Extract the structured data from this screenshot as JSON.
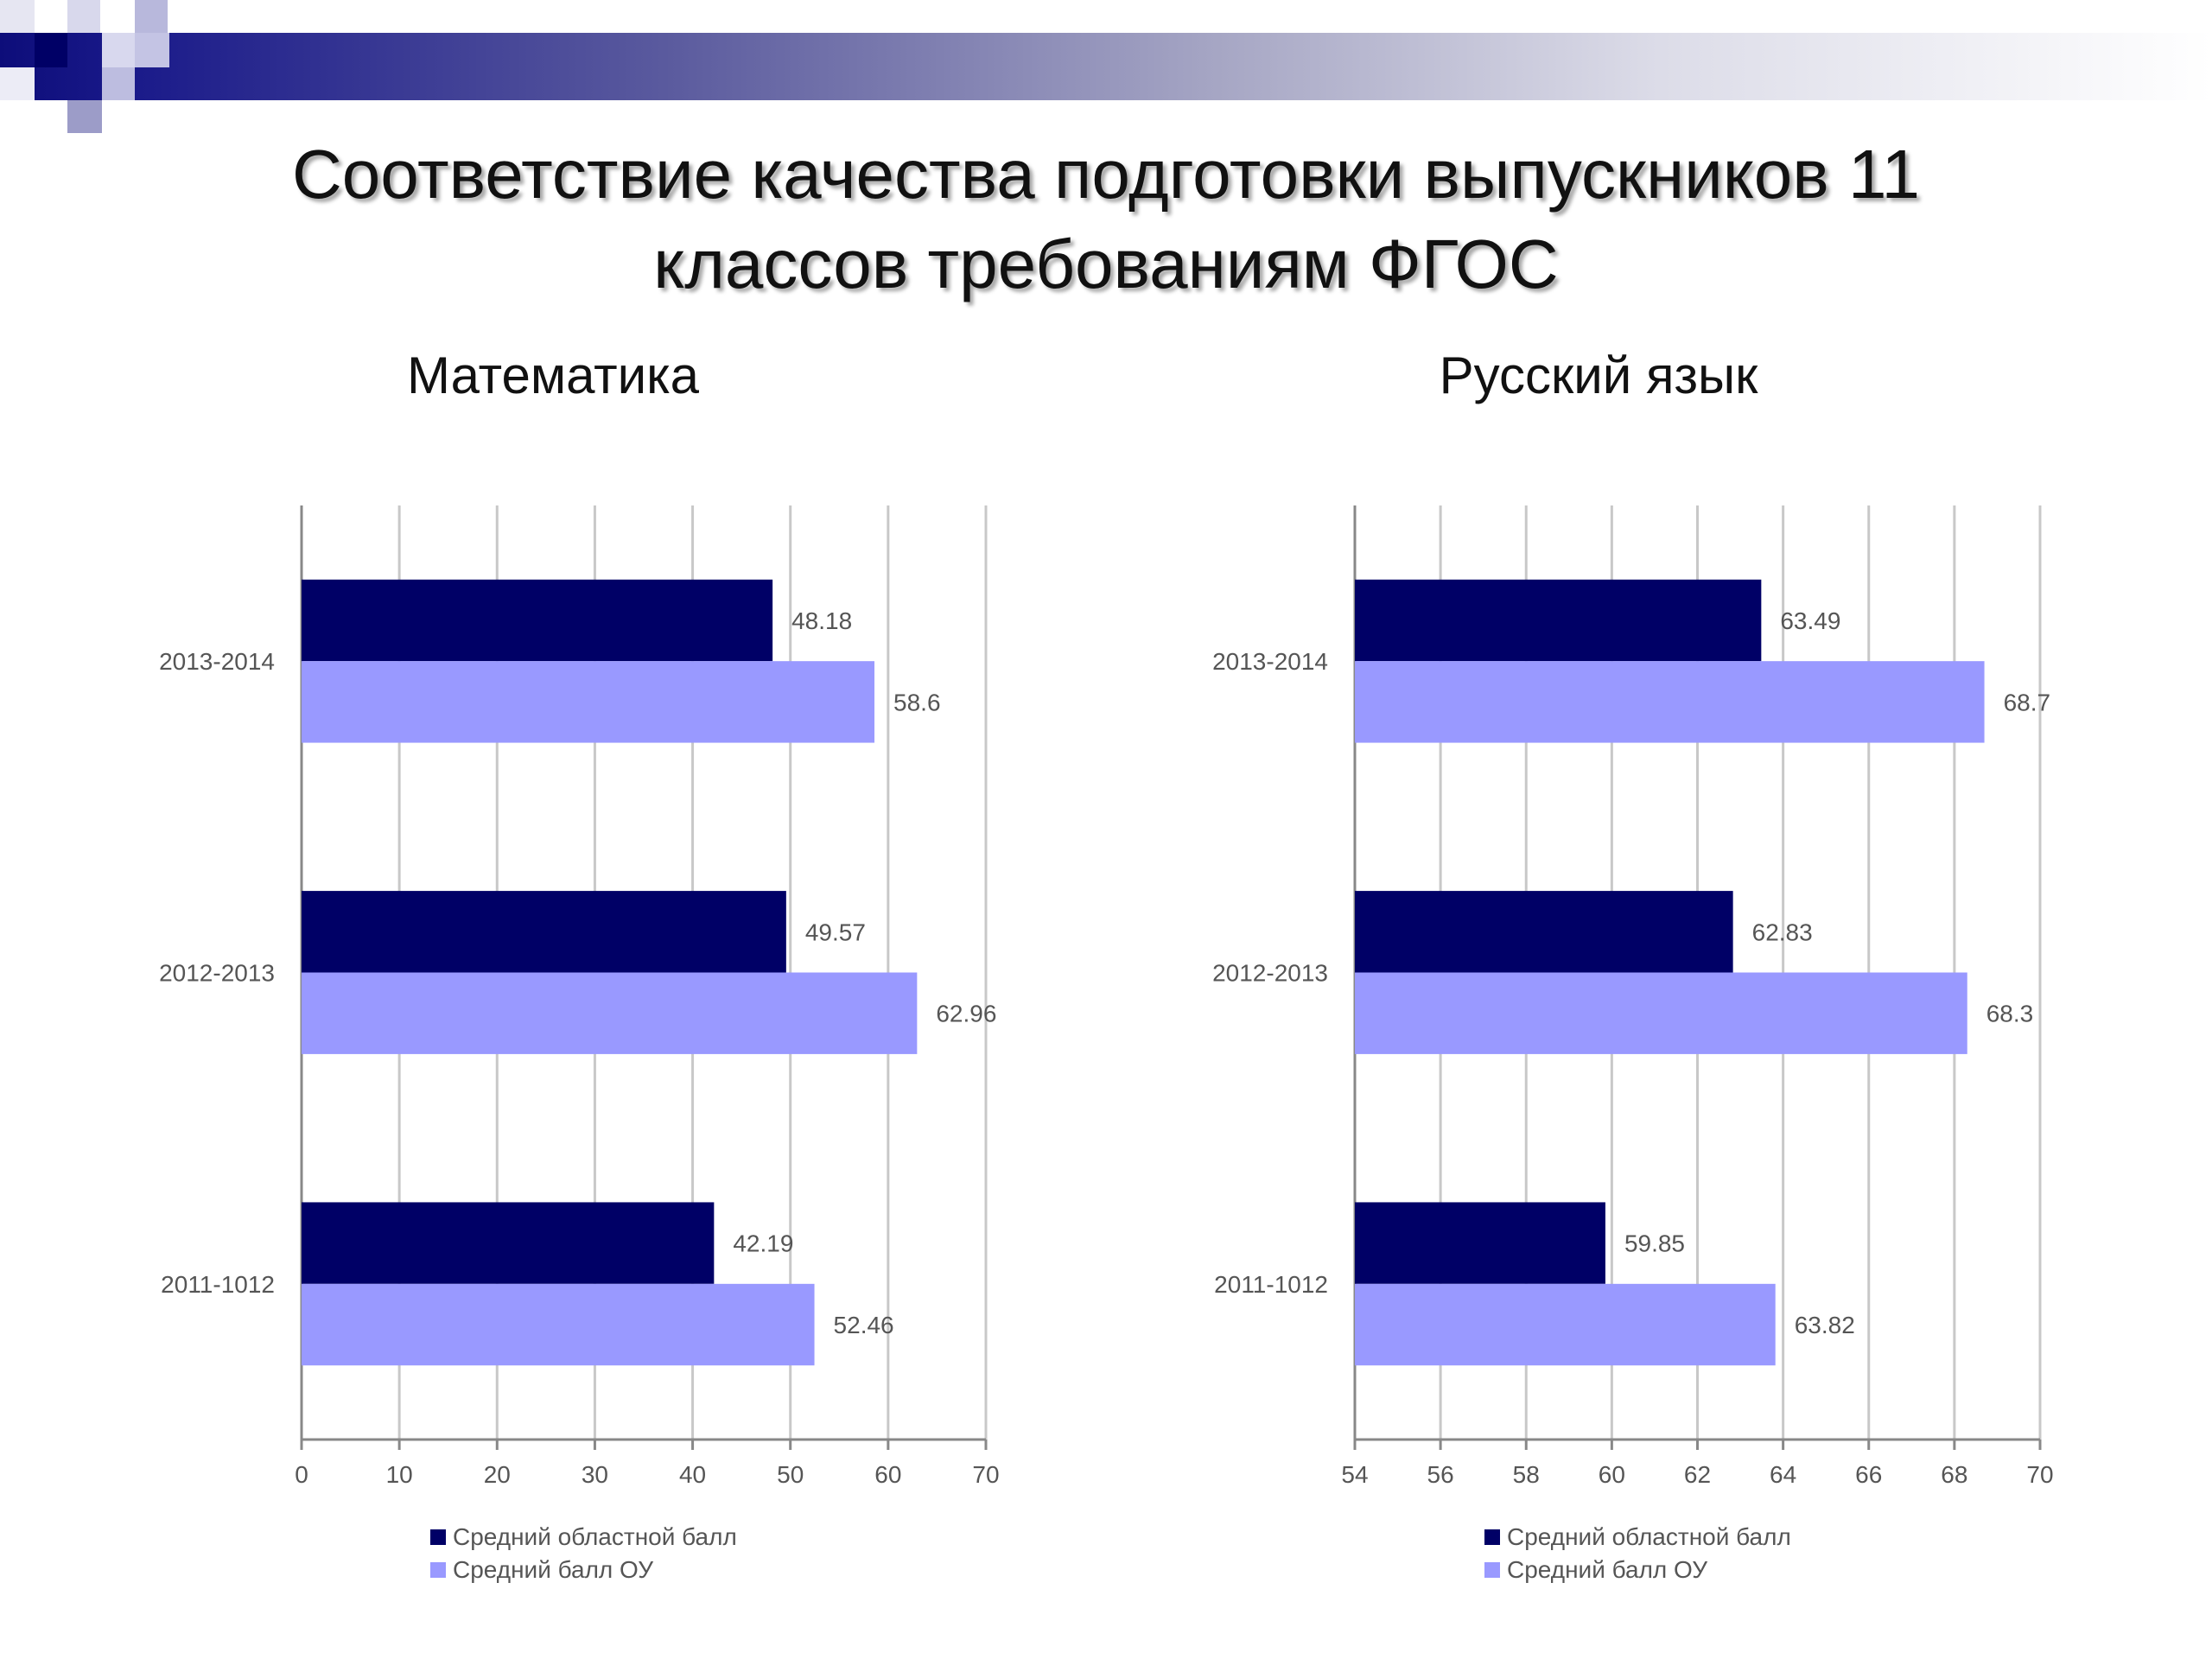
{
  "slide": {
    "title_line1": "Соответствие качества подготовки выпускников 11",
    "title_line2": "классов требованиям ФГОС"
  },
  "colors": {
    "regional": "#000066",
    "school": "#9999ff",
    "band_start": "#0d0d7a",
    "grid": "#c8c8c8",
    "axis": "#888888"
  },
  "chart_data": [
    {
      "type": "bar",
      "orientation": "horizontal",
      "title": "Математика",
      "categories": [
        "2013-2014",
        "2012-2013",
        "2011-1012"
      ],
      "series": [
        {
          "name": "Средний областной балл",
          "values": [
            48.18,
            49.57,
            42.19
          ],
          "labels": [
            "48.18",
            "49.57",
            "42.19"
          ]
        },
        {
          "name": "Средний балл ОУ",
          "values": [
            58.6,
            62.96,
            52.46
          ],
          "labels": [
            "58.6",
            "62.96",
            "52.46"
          ]
        }
      ],
      "xlim": [
        0,
        70
      ],
      "xticks": [
        0,
        10,
        20,
        30,
        40,
        50,
        60,
        70
      ],
      "grid": true,
      "legend_position": "bottom"
    },
    {
      "type": "bar",
      "orientation": "horizontal",
      "title": "Русский язык",
      "categories": [
        "2013-2014",
        "2012-2013",
        "2011-1012"
      ],
      "series": [
        {
          "name": "Средний областной балл",
          "values": [
            63.49,
            62.83,
            59.85
          ],
          "labels": [
            "63.49",
            "62.83",
            "59.85"
          ]
        },
        {
          "name": "Средний балл ОУ",
          "values": [
            68.7,
            68.3,
            63.82
          ],
          "labels": [
            "68.7",
            "68.3",
            "63.82"
          ]
        }
      ],
      "xlim": [
        54,
        70
      ],
      "xticks": [
        54,
        56,
        58,
        60,
        62,
        64,
        66,
        68,
        70
      ],
      "grid": true,
      "legend_position": "bottom"
    }
  ]
}
